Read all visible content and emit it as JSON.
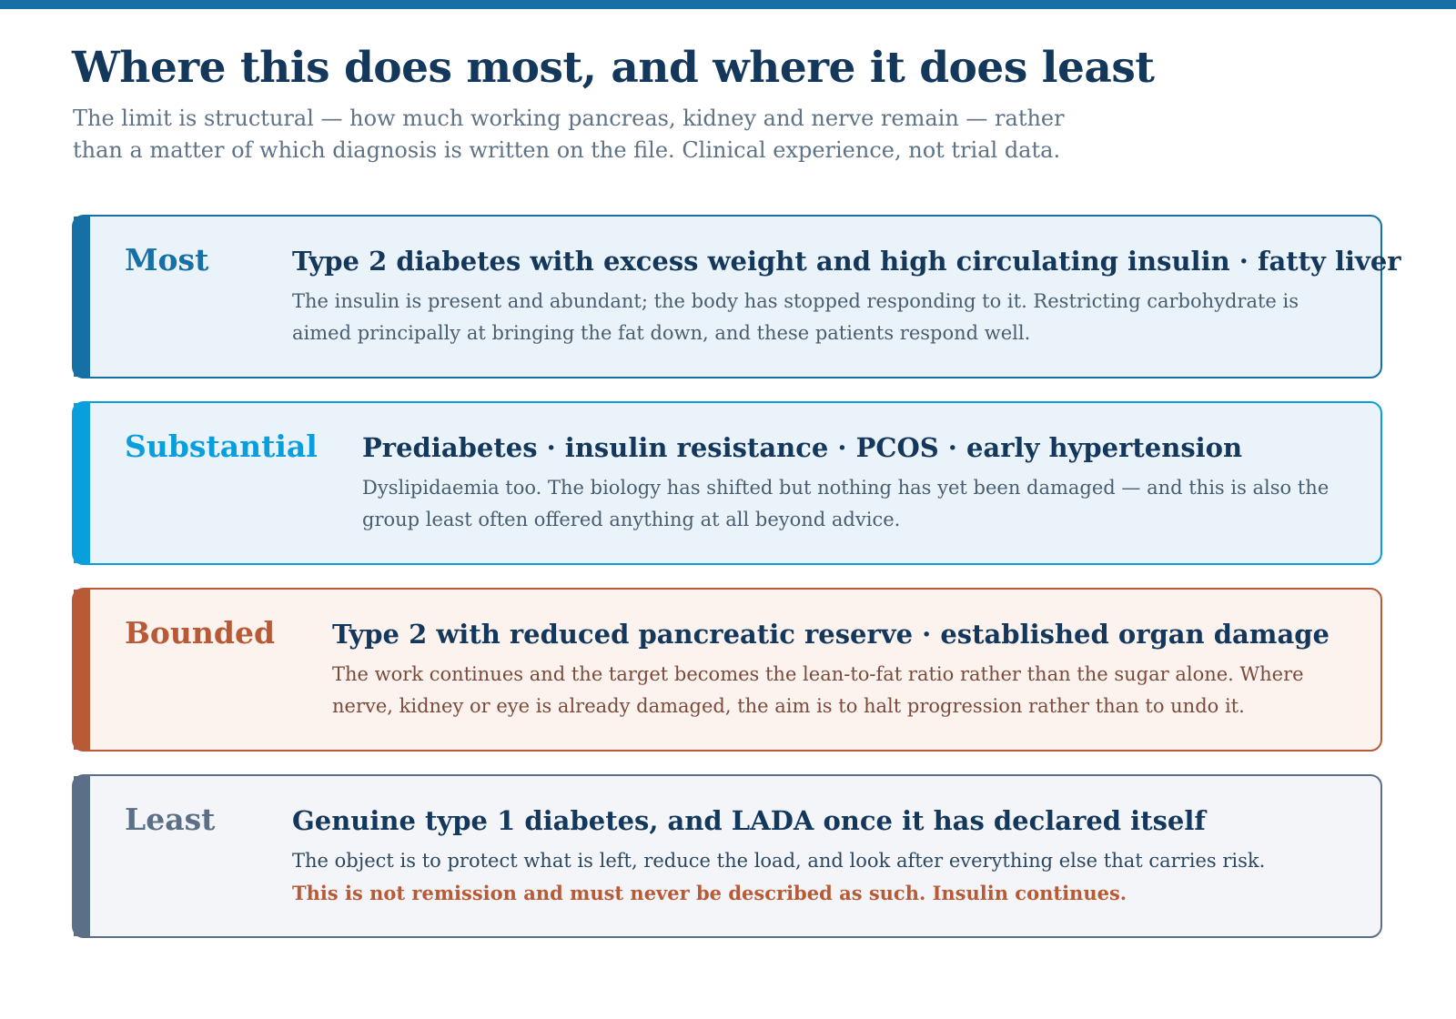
{
  "page": {
    "title": "Where this does most, and where it does least",
    "subtitle": "The limit is structural — how much working pancreas, kidney and nerve remain — rather than a matter of which diagnosis is written on the file. Clinical experience, not trial data."
  },
  "colors": {
    "header_bar": "#1670a5",
    "title": "#14375c",
    "subtitle": "#5f7286"
  },
  "tiers": [
    {
      "label": "Most",
      "heading": "Type 2 diabetes with excess weight and high circulating insulin · fatty liver",
      "description": "The insulin is present and abundant; the body has stopped responding to it. Restricting carbohydrate is aimed principally at bringing the fat down, and these patients respond well.",
      "warning": "",
      "accent_color": "#1670a5",
      "background_color": "#ebf3fa",
      "text_color": "#485d70"
    },
    {
      "label": "Substantial",
      "heading": "Prediabetes · insulin resistance · PCOS · early hypertension",
      "description": "Dyslipidaemia too. The biology has shifted but nothing has yet been damaged — and this is also the group least often offered anything at all beyond advice.",
      "warning": "",
      "accent_color": "#089fdc",
      "background_color": "#ebf3fa",
      "text_color": "#485d70"
    },
    {
      "label": "Bounded",
      "heading": "Type 2 with reduced pancreatic reserve · established organ damage",
      "description": "The work continues and the target becomes the lean-to-fat ratio rather than the sugar alone. Where nerve, kidney or eye is already damaged, the aim is to halt progression rather than to undo it.",
      "warning": "",
      "accent_color": "#b95a36",
      "background_color": "#fcf2ee",
      "text_color": "#7a4a3a"
    },
    {
      "label": "Least",
      "heading": "Genuine type 1 diabetes, and LADA once it has declared itself",
      "description": "The object is to protect what is left, reduce the load, and look after everything else that carries risk.",
      "warning": "This is not remission and must never be described as such. Insulin continues.",
      "accent_color": "#5b6f87",
      "background_color": "#f3f5f8",
      "text_color": "#2c4760"
    }
  ]
}
